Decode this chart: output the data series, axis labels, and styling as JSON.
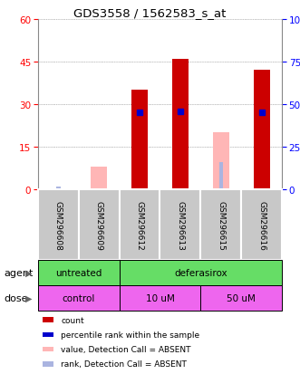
{
  "title": "GDS3558 / 1562583_s_at",
  "samples": [
    "GSM296608",
    "GSM296609",
    "GSM296612",
    "GSM296613",
    "GSM296615",
    "GSM296616"
  ],
  "count_values": [
    0,
    0,
    35,
    46,
    0,
    42
  ],
  "rank_values": [
    0,
    0,
    45,
    46,
    0,
    45
  ],
  "absent_value_values": [
    0,
    8,
    0,
    0,
    20,
    0
  ],
  "absent_rank_values": [
    1.5,
    0,
    0,
    0,
    16,
    0
  ],
  "detection_absent": [
    true,
    true,
    false,
    false,
    true,
    false
  ],
  "left_ylim": [
    0,
    60
  ],
  "right_ylim": [
    0,
    100
  ],
  "left_yticks": [
    0,
    15,
    30,
    45,
    60
  ],
  "right_yticks": [
    0,
    25,
    50,
    75,
    100
  ],
  "right_yticklabels": [
    "0",
    "25",
    "50",
    "75",
    "100%"
  ],
  "color_red": "#cc0000",
  "color_blue": "#0000cc",
  "color_pink": "#ffb6b6",
  "color_lightblue": "#aab4e0",
  "color_gray": "#c8c8c8",
  "color_green": "#66dd66",
  "color_magenta": "#ee66ee",
  "agent_label_texts": [
    "untreated",
    "deferasirox"
  ],
  "agent_spans": [
    2,
    4
  ],
  "dose_label_texts": [
    "control",
    "10 uM",
    "50 uM"
  ],
  "dose_spans": [
    2,
    2,
    2
  ],
  "agent_label": "agent",
  "dose_label": "dose",
  "legend_items": [
    {
      "color": "#cc0000",
      "label": "count"
    },
    {
      "color": "#0000cc",
      "label": "percentile rank within the sample"
    },
    {
      "color": "#ffb6b6",
      "label": "value, Detection Call = ABSENT"
    },
    {
      "color": "#aab4e0",
      "label": "rank, Detection Call = ABSENT"
    }
  ]
}
